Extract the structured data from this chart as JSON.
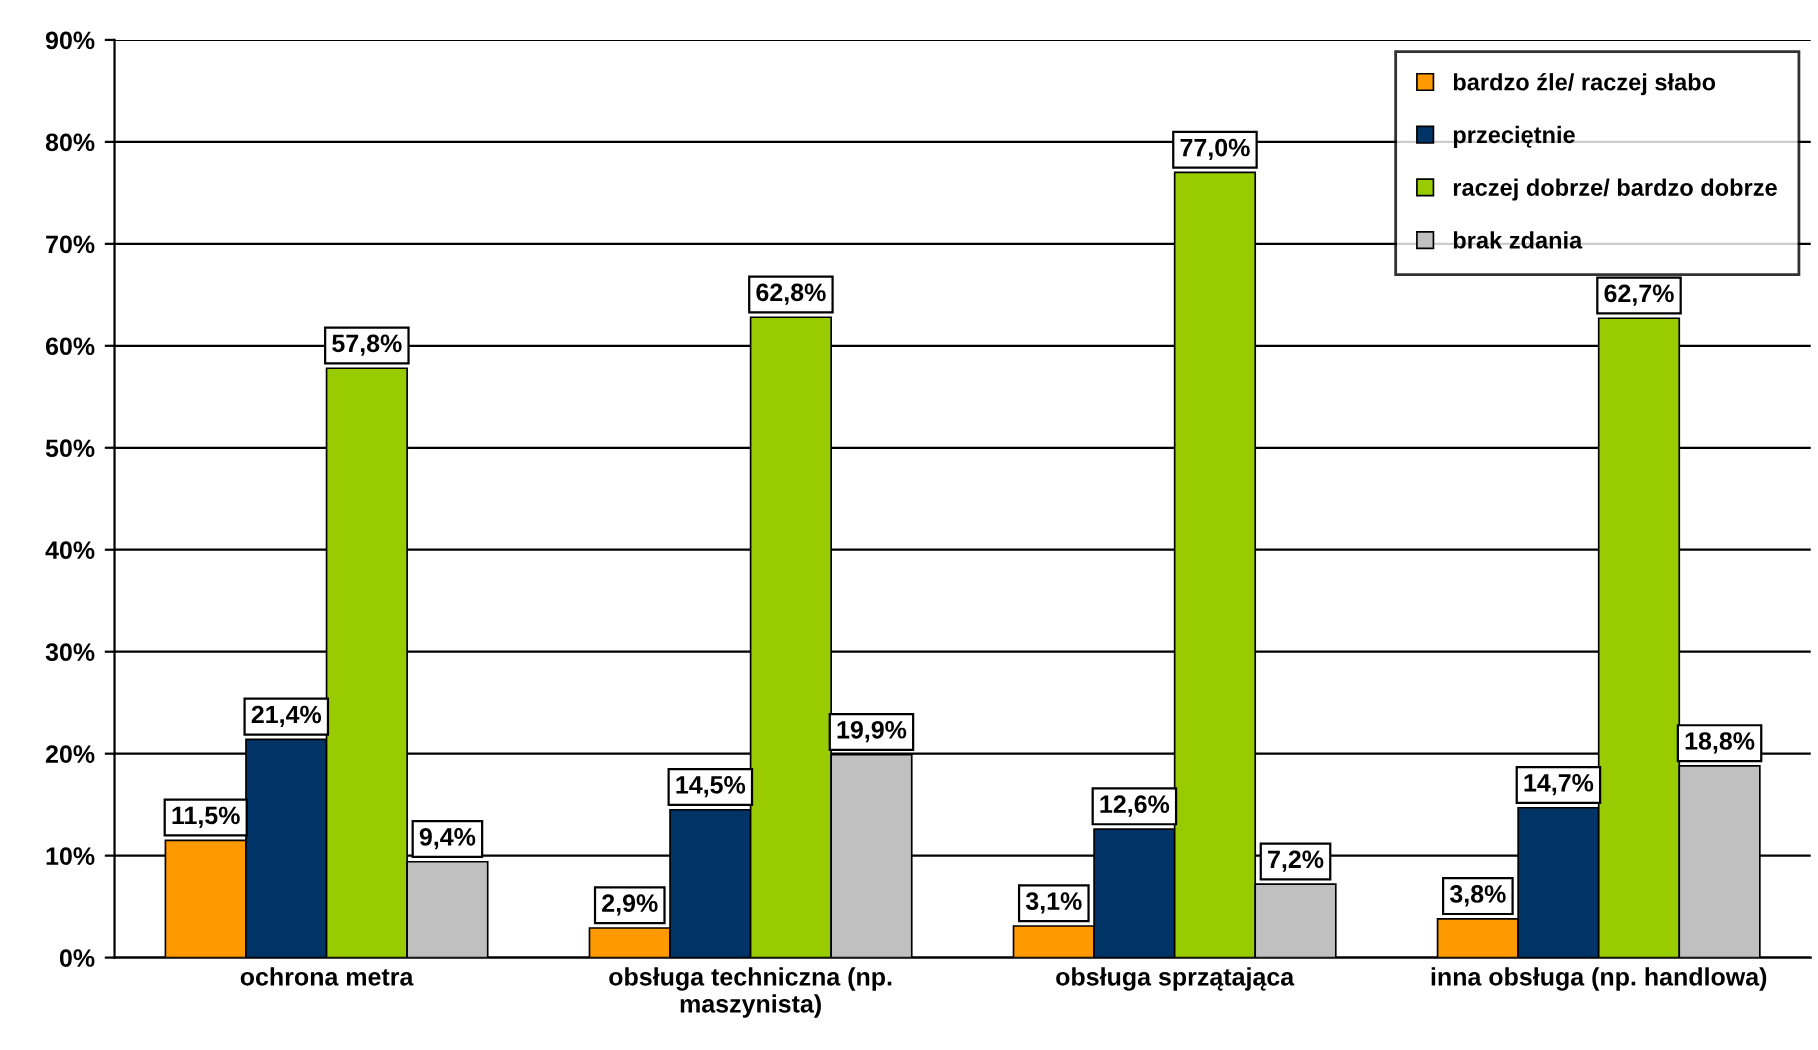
{
  "chart_data": {
    "type": "bar",
    "categories": [
      "ochrona metra",
      "obsługa techniczna (np.\nmaszynista)",
      "obsługa sprzątająca",
      "inna obsługa (np. handlowa)"
    ],
    "series": [
      {
        "name": "bardzo źle/ raczej słabo",
        "color": "#ff9900",
        "values": [
          11.5,
          2.9,
          3.1,
          3.8
        ],
        "value_labels": [
          "11,5%",
          "2,9%",
          "3,1%",
          "3,8%"
        ]
      },
      {
        "name": "przeciętnie",
        "color": "#003366",
        "values": [
          21.4,
          14.5,
          12.6,
          14.7
        ],
        "value_labels": [
          "21,4%",
          "14,5%",
          "12,6%",
          "14,7%"
        ]
      },
      {
        "name": "raczej dobrze/ bardzo dobrze",
        "color": "#99cc00",
        "values": [
          57.8,
          62.8,
          77.0,
          62.7
        ],
        "value_labels": [
          "57,8%",
          "62,8%",
          "77,0%",
          "62,7%"
        ]
      },
      {
        "name": "brak zdania",
        "color": "#c0c0c0",
        "values": [
          9.4,
          19.9,
          7.2,
          18.8
        ],
        "value_labels": [
          "9,4%",
          "19,9%",
          "7,2%",
          "18,8%"
        ]
      }
    ],
    "ylim": [
      0,
      90
    ],
    "yticks": [
      {
        "value": 0,
        "label": "0%"
      },
      {
        "value": 10,
        "label": "10%"
      },
      {
        "value": 20,
        "label": "20%"
      },
      {
        "value": 30,
        "label": "30%"
      },
      {
        "value": 40,
        "label": "40%"
      },
      {
        "value": 50,
        "label": "50%"
      },
      {
        "value": 60,
        "label": "60%"
      },
      {
        "value": 70,
        "label": "70%"
      },
      {
        "value": 80,
        "label": "80%"
      },
      {
        "value": 90,
        "label": "90%"
      }
    ],
    "grid": "y",
    "legend": "top right"
  }
}
